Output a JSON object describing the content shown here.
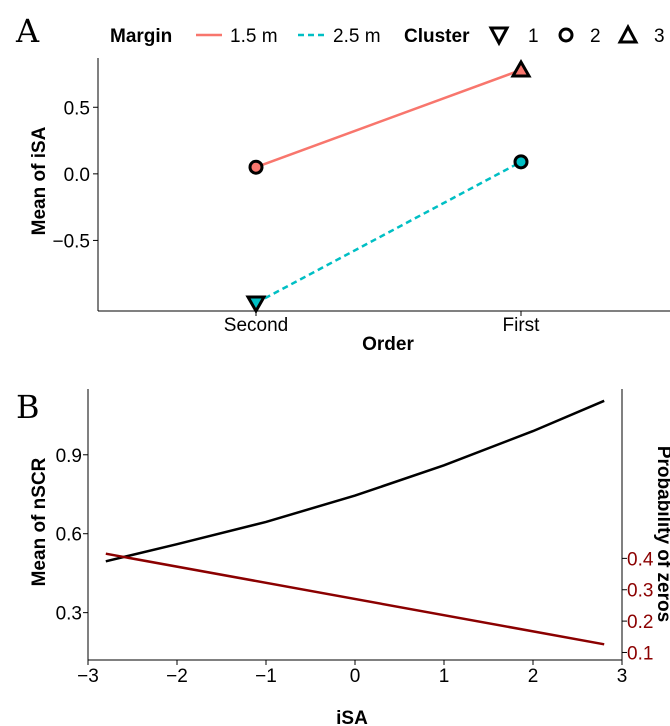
{
  "chart_data": [
    {
      "panel_label": "A",
      "type": "line",
      "xlabel": "Order",
      "ylabel": "Mean of iSA",
      "categories": [
        "Second",
        "First"
      ],
      "yticks": [
        0.5,
        0.0,
        -0.5
      ],
      "ytick_labels": [
        "0.5",
        "0.0",
        "−0.5"
      ],
      "ylim": [
        -1.03,
        0.87
      ],
      "grid": false,
      "legend": {
        "placement": "top",
        "margin_title": "Margin",
        "margin_entries": [
          {
            "label": "1.5 m",
            "color": "#f8766d",
            "style": "solid"
          },
          {
            "label": "2.5 m",
            "color": "#00bfc4",
            "style": "dashed"
          }
        ],
        "cluster_title": "Cluster",
        "cluster_entries": [
          {
            "label": "1",
            "shape": "triangle-down"
          },
          {
            "label": "2",
            "shape": "circle"
          },
          {
            "label": "3",
            "shape": "triangle-up"
          }
        ]
      },
      "series": [
        {
          "name": "1.5 m",
          "color": "#f8766d",
          "style": "solid",
          "points": [
            {
              "x": "Second",
              "y": 0.05,
              "cluster": "2"
            },
            {
              "x": "First",
              "y": 0.78,
              "cluster": "3"
            }
          ]
        },
        {
          "name": "2.5 m",
          "color": "#00bfc4",
          "style": "dashed",
          "points": [
            {
              "x": "Second",
              "y": -0.97,
              "cluster": "1"
            },
            {
              "x": "First",
              "y": 0.09,
              "cluster": "2"
            }
          ]
        }
      ]
    },
    {
      "panel_label": "B",
      "type": "line",
      "xlabel": "iSA",
      "ylabel": "Mean of nSCR",
      "y2label": "Probability of zeros",
      "xlim": [
        -3,
        3
      ],
      "xticks": [
        -3,
        -2,
        -1,
        0,
        1,
        2,
        3
      ],
      "xtick_labels": [
        "−3",
        "−2",
        "−1",
        "0",
        "1",
        "2",
        "3"
      ],
      "ylim": [
        0.12,
        1.15
      ],
      "yticks": [
        0.3,
        0.6,
        0.9
      ],
      "ytick_labels": [
        "0.3",
        "0.6",
        "0.9"
      ],
      "y2lim": [
        0.076,
        0.94
      ],
      "y2ticks": [
        0.1,
        0.2,
        0.3,
        0.4
      ],
      "y2tick_labels": [
        "0.1",
        "0.2",
        "0.3",
        "0.4"
      ],
      "y2_color": "#8b0000",
      "grid": false,
      "series": [
        {
          "name": "",
          "axis": "left",
          "color": "#000000",
          "x": [
            -2.8,
            -2,
            -1,
            0,
            1,
            2,
            2.8
          ],
          "y": [
            0.495,
            0.56,
            0.645,
            0.745,
            0.86,
            0.99,
            1.105
          ]
        },
        {
          "name": "",
          "axis": "right",
          "color": "#8b0000",
          "x": [
            -2.8,
            2.8
          ],
          "y": [
            0.415,
            0.126
          ]
        }
      ]
    }
  ]
}
